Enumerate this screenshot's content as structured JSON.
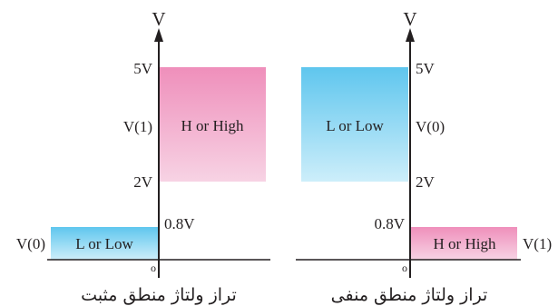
{
  "colors": {
    "pink_top": "#ef8fbb",
    "pink_bottom": "#f7d3e4",
    "blue_top": "#5fc6ee",
    "blue_bottom": "#cdeefa",
    "axis": "#231f20"
  },
  "positive_logic": {
    "axis_label": "V",
    "tick_5v": "5V",
    "tick_v1": "V(1)",
    "tick_2v": "2V",
    "tick_08v": "0.8V",
    "tick_v0": "V(0)",
    "origin": "o",
    "high_region_label": "H or High",
    "low_region_label": "L or Low",
    "caption": "تراز ولتاژ منطق مثبت"
  },
  "negative_logic": {
    "axis_label": "V",
    "tick_5v": "5V",
    "tick_v0": "V(0)",
    "tick_2v": "2V",
    "tick_08v": "0.8V",
    "tick_v1": "V(1)",
    "origin": "o",
    "low_region_label": "L or Low",
    "high_region_label": "H or High",
    "caption": "تراز ولتاژ منطق منفی"
  }
}
